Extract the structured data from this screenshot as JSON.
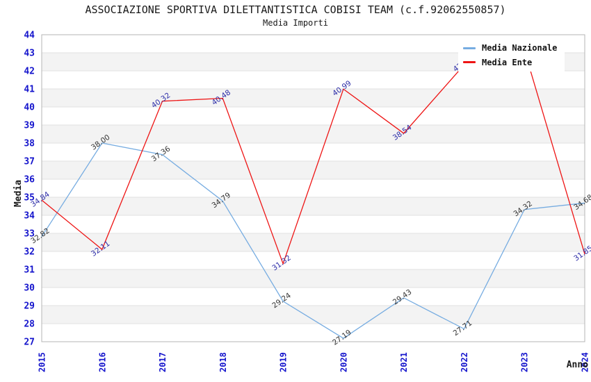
{
  "title": "ASSOCIAZIONE SPORTIVA DILETTANTISTICA COBISI TEAM (c.f.92062550857)",
  "subtitle": "Media Importi",
  "chart_data": {
    "type": "line",
    "x": [
      "2015",
      "2016",
      "2017",
      "2018",
      "2019",
      "2020",
      "2021",
      "2022",
      "2023",
      "2024"
    ],
    "xlabel": "Anno",
    "ylabel": "Media",
    "ylim": [
      27,
      44
    ],
    "ytick_step": 1,
    "grid": "horizontal-bands",
    "legend_position": "top-right",
    "series": [
      {
        "name": "Media Nazionale",
        "color": "#76ace1",
        "label_color": "#333333",
        "values": [
          32.82,
          38.0,
          37.36,
          34.79,
          29.24,
          27.19,
          29.43,
          27.71,
          34.32,
          34.68
        ]
      },
      {
        "name": "Media Ente",
        "color": "#ee1414",
        "label_color": "#2d2da8",
        "values": [
          34.84,
          32.11,
          40.32,
          40.48,
          31.32,
          40.99,
          38.54,
          42.33,
          43.14,
          31.85
        ]
      }
    ],
    "styles": {
      "axis_tick_color": "#1414cc",
      "band_color": "#f3f3f3",
      "grid_color": "#e2e2e2",
      "border_color": "#b5b5b5",
      "axis_title_color": "#1a1a1a",
      "plot_background": "#ffffff"
    }
  }
}
